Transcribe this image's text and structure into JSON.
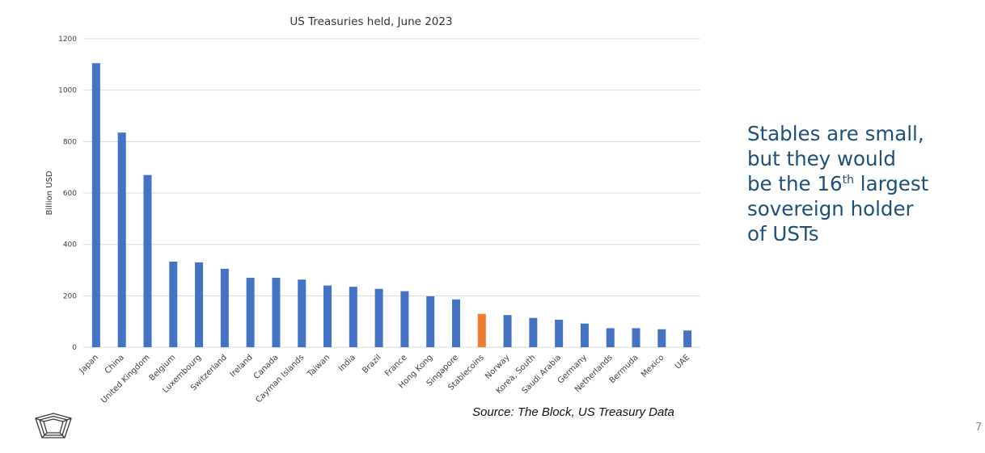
{
  "chart_data": {
    "type": "bar",
    "title": "US Treasuries held, June 2023",
    "xlabel": "",
    "ylabel": "Billion USD",
    "ylim": [
      0,
      1200
    ],
    "yticks": [
      0,
      200,
      400,
      600,
      800,
      1000,
      1200
    ],
    "ytick_labels": [
      "0",
      "200",
      "400",
      "600",
      "800",
      "1000",
      "1200"
    ],
    "grid": true,
    "categories": [
      "Japan",
      "China",
      "United Kingdom",
      "Belgium",
      "Luxembourg",
      "Switzerland",
      "Ireland",
      "Canada",
      "Cayman Islands",
      "Taiwan",
      "India",
      "Brazil",
      "France",
      "Hong Kong",
      "Singapore",
      "Stablecoins",
      "Norway",
      "Korea, South",
      "Saudi Arabia",
      "Germany",
      "Netherlands",
      "Bermuda",
      "Mexico",
      "UAE"
    ],
    "values": [
      1105,
      835,
      670,
      333,
      330,
      305,
      270,
      270,
      263,
      240,
      235,
      227,
      218,
      198,
      186,
      130,
      125,
      114,
      107,
      92,
      74,
      74,
      70,
      65
    ],
    "highlight": "Stablecoins",
    "colors": {
      "default_bar": "#4472c4",
      "highlight_bar": "#ed7d31",
      "gridline": "#d9d9d9"
    }
  },
  "source_note": "Source: The Block, US Treasury Data",
  "callout": {
    "line1": "Stables are small,",
    "line2": "but they would",
    "line3_before": "be the 16",
    "line3_sup": "th",
    "line3_after": " largest",
    "line4": "sovereign holder",
    "line5": "of USTs",
    "color": "#1f4e79"
  },
  "page_number": "7",
  "logo_icon": "pentagon-logo-icon"
}
